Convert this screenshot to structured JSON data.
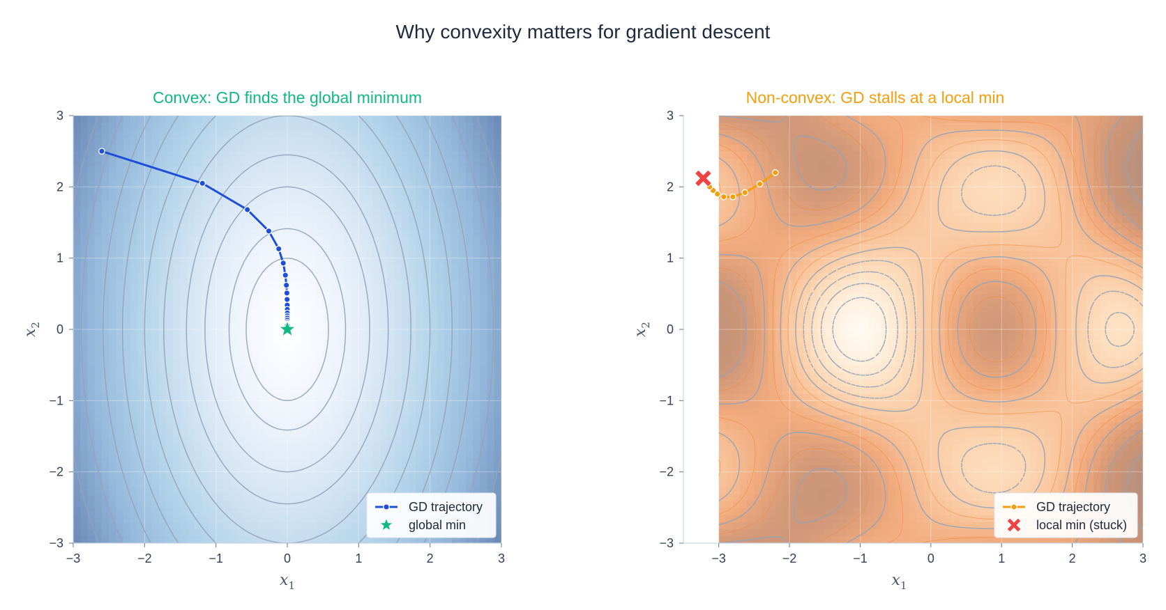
{
  "figure_title": "Why convexity matters for gradient descent",
  "chart_data": [
    {
      "type": "contour",
      "title": "Convex: GD finds the global minimum",
      "title_color": "#10b981",
      "xlabel": "x1",
      "ylabel": "x2",
      "xlim": [
        -3,
        3
      ],
      "ylim": [
        -3,
        3
      ],
      "xticks": [
        -3,
        -2,
        -1,
        0,
        1,
        2,
        3
      ],
      "yticks": [
        -3,
        -2,
        -1,
        0,
        1,
        2,
        3
      ],
      "xtick_labels": [
        "−3",
        "−2",
        "−1",
        "0",
        "1",
        "2",
        "3"
      ],
      "ytick_labels": [
        "−3",
        "−2",
        "−1",
        "0",
        "1",
        "2",
        "3"
      ],
      "colormap": "blues",
      "contour_levels": [
        0.5,
        1,
        2,
        3,
        4.5,
        6,
        8,
        10,
        12.5,
        15,
        18,
        21,
        24,
        28
      ],
      "trajectory": {
        "name": "GD trajectory",
        "color": "#1d4ed8",
        "x": [
          -2.6,
          -1.19,
          -0.56,
          -0.26,
          -0.12,
          -0.057,
          -0.027,
          -0.013,
          -0.006,
          -0.003,
          -0.0014,
          -0.0006,
          -0.0003,
          -0.0001,
          0,
          0,
          0,
          0,
          0,
          0,
          0
        ],
        "y": [
          2.5,
          2.05,
          1.68,
          1.38,
          1.13,
          0.93,
          0.76,
          0.62,
          0.51,
          0.42,
          0.34,
          0.28,
          0.23,
          0.19,
          0.16,
          0.13,
          0.1,
          0.08,
          0.07,
          0.06,
          0.05
        ]
      },
      "minimum": {
        "name": "global min",
        "x": 0,
        "y": 0,
        "color": "#10b981",
        "marker": "star"
      },
      "legend_position": "bottom-right"
    },
    {
      "type": "contour",
      "title": "Non-convex: GD stalls at a local min",
      "title_color": "#f59e0b",
      "xlabel": "x1",
      "ylabel": "x2",
      "xlim": [
        -3.5,
        3
      ],
      "ylim": [
        -3,
        3
      ],
      "xticks": [
        -3,
        -2,
        -1,
        0,
        1,
        2,
        3
      ],
      "yticks": [
        -3,
        -2,
        -1,
        0,
        1,
        2,
        3
      ],
      "xtick_labels": [
        "−3",
        "−2",
        "−1",
        "0",
        "1",
        "2",
        "3"
      ],
      "ytick_labels": [
        "−3",
        "−2",
        "−1",
        "0",
        "1",
        "2",
        "3"
      ],
      "colormap": "oranges",
      "contour_data_xrange": [
        -3,
        3
      ],
      "trajectory": {
        "name": "GD trajectory",
        "color": "#f59e0b",
        "x": [
          -2.2,
          -2.42,
          -2.63,
          -2.8,
          -2.93,
          -3.02,
          -3.08,
          -3.13
        ],
        "y": [
          2.2,
          2.04,
          1.92,
          1.86,
          1.86,
          1.9,
          1.95,
          2.0
        ]
      },
      "minimum": {
        "name": "local min (stuck)",
        "x": -3.22,
        "y": 2.12,
        "color": "#ef4444",
        "marker": "x"
      },
      "legend_position": "bottom-right"
    }
  ]
}
